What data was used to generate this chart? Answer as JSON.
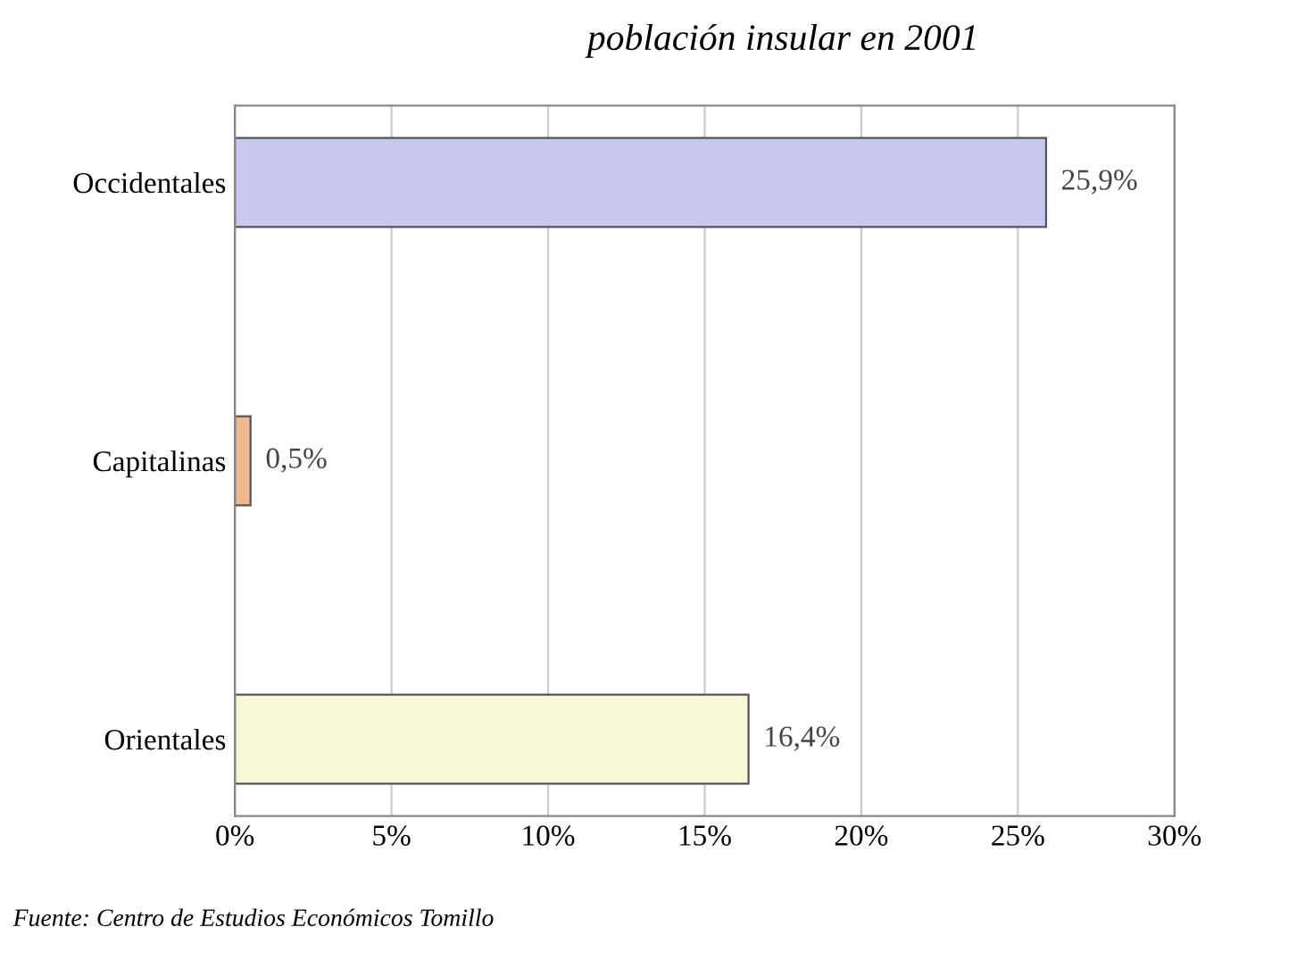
{
  "chart_data": {
    "type": "bar",
    "orientation": "horizontal",
    "title": "población insular en 2001",
    "categories": [
      "Occidentales",
      "Capitalinas",
      "Orientales"
    ],
    "values": [
      25.9,
      0.5,
      16.4
    ],
    "value_labels": [
      "25,9%",
      "0,5%",
      "16,4%"
    ],
    "colors": [
      "#c8c8f0",
      "#f0b890",
      "#f8f8d8"
    ],
    "xlim": [
      0,
      30
    ],
    "xticks": [
      {
        "value": 0,
        "label": "0%"
      },
      {
        "value": 5,
        "label": "5%"
      },
      {
        "value": 10,
        "label": "10%"
      },
      {
        "value": 15,
        "label": "15%"
      },
      {
        "value": 20,
        "label": "20%"
      },
      {
        "value": 25,
        "label": "25%"
      },
      {
        "value": 30,
        "label": "30%"
      }
    ],
    "grid": "x",
    "annotations": [
      "Fuente: Centro de Estudios Económicos Tomillo"
    ]
  }
}
